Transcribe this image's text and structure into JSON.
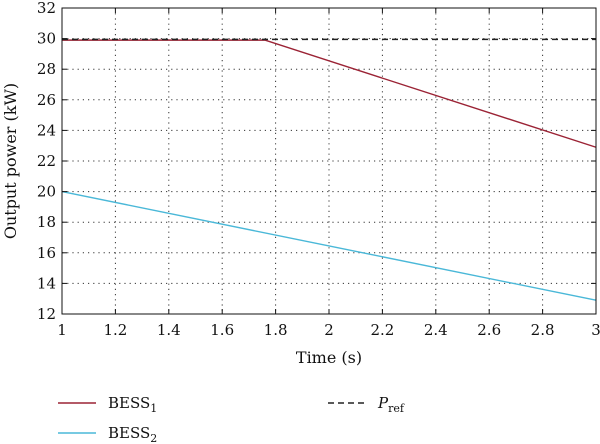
{
  "chart_data": {
    "type": "line",
    "title": "",
    "xlabel": "Time (s)",
    "ylabel": "Output power (kW)",
    "xlim": [
      1,
      3
    ],
    "ylim": [
      12,
      32
    ],
    "xticks": [
      1,
      1.2,
      1.4,
      1.6,
      1.8,
      2,
      2.2,
      2.4,
      2.6,
      2.8,
      3
    ],
    "xtick_labels": [
      "1",
      "1.2",
      "1.4",
      "1.6",
      "1.8",
      "2",
      "2.2",
      "2.4",
      "2.6",
      "2.8",
      "3"
    ],
    "yticks": [
      12,
      14,
      16,
      18,
      20,
      22,
      24,
      26,
      28,
      30,
      32
    ],
    "ytick_labels": [
      "12",
      "14",
      "16",
      "18",
      "20",
      "22",
      "24",
      "26",
      "28",
      "30",
      "32"
    ],
    "grid": "dotted",
    "legend_placement": "below-plot",
    "series": [
      {
        "name": "BESS1",
        "legend_base": "BESS",
        "legend_sub": "1",
        "color": "#9b2335",
        "dash": "solid",
        "x": [
          1,
          1.76,
          3
        ],
        "y": [
          29.9,
          29.9,
          22.9
        ]
      },
      {
        "name": "BESS2",
        "legend_base": "BESS",
        "legend_sub": "2",
        "color": "#4ab8d8",
        "dash": "solid",
        "x": [
          1,
          3
        ],
        "y": [
          20,
          12.9
        ]
      },
      {
        "name": "Pref",
        "legend_base": "P",
        "legend_sub": "ref",
        "legend_italic": true,
        "color": "#222222",
        "dash": "dashed",
        "x": [
          1,
          3
        ],
        "y": [
          29.95,
          29.95
        ]
      }
    ]
  }
}
